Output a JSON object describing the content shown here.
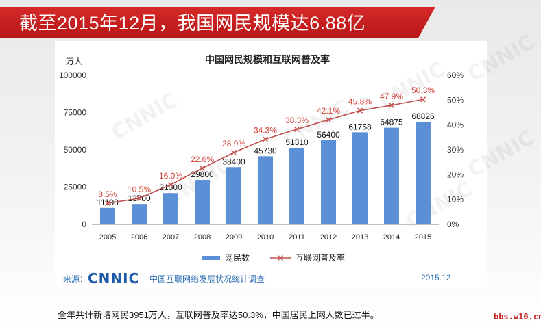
{
  "slide": {
    "title": "截至2015年12月，我国网民规模达6.88亿",
    "caption": "全年共计新增网民3951万人，互联网普及率达50.3%，中国居民上网人数已过半。",
    "site_tag": "bbs.w10.cn"
  },
  "source": {
    "label": "来源：",
    "logo_text": "CNNIC",
    "org": "中国互联网络发展状况统计调查",
    "date": "2015.12"
  },
  "colors": {
    "bar": "#5b8fd6",
    "line": "#c0504d",
    "title_bar": "#c81e1e",
    "label_red": "#d03a2f"
  },
  "chart_data": {
    "type": "bar",
    "title": "中国网民规模和互联网普及率",
    "left_axis_unit": "万人",
    "categories": [
      "2005",
      "2006",
      "2007",
      "2008",
      "2009",
      "2010",
      "2011",
      "2012",
      "2013",
      "2014",
      "2015"
    ],
    "series": [
      {
        "name": "网民数",
        "type": "bar",
        "axis": "left",
        "values": [
          11100,
          13700,
          21000,
          29800,
          38400,
          45730,
          51310,
          56400,
          61758,
          64875,
          68826
        ],
        "labels": [
          "11100",
          "13700",
          "21000",
          "29800",
          "38400",
          "45730",
          "51310",
          "56400",
          "61758",
          "64875",
          "68826"
        ]
      },
      {
        "name": "互联网普及率",
        "type": "line",
        "axis": "right",
        "values": [
          8.5,
          10.5,
          16.0,
          22.6,
          28.9,
          34.3,
          38.3,
          42.1,
          45.8,
          47.9,
          50.3
        ],
        "labels": [
          "8.5%",
          "10.5%",
          "16.0%",
          "22.6%",
          "28.9%",
          "34.3%",
          "38.3%",
          "42.1%",
          "45.8%",
          "47.9%",
          "50.3%"
        ]
      }
    ],
    "left_ylim": [
      0,
      100000
    ],
    "left_ticks": [
      "0",
      "25000",
      "50000",
      "75000",
      "100000"
    ],
    "right_ylim": [
      0,
      60
    ],
    "right_ticks": [
      "0%",
      "10%",
      "20%",
      "30%",
      "40%",
      "50%",
      "60%"
    ],
    "legend": "bottom-center",
    "watermark": "CNNIC"
  }
}
